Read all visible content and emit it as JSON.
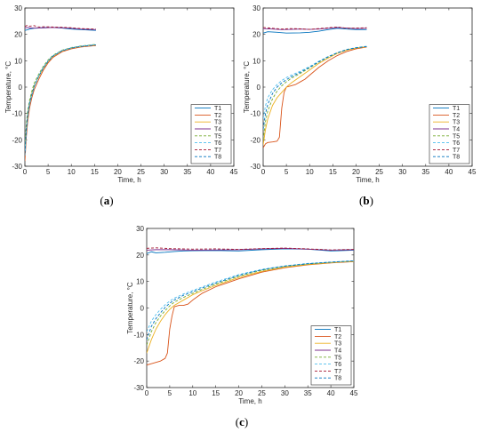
{
  "colors": {
    "T1": "#0072BD",
    "T2": "#D95319",
    "T3": "#EDB120",
    "T4": "#7E2F8E",
    "T5": "#77AC30",
    "T6": "#4DBEEE",
    "T7": "#A2142F",
    "T8": "#0072BD"
  },
  "chart_data": [
    {
      "id": "a",
      "type": "line",
      "caption": {
        "open": "(",
        "letter": "a",
        "close": ")"
      },
      "xlabel": "Time, h",
      "ylabel": "Temperature, °C",
      "xlim": [
        0,
        45
      ],
      "ylim": [
        -30,
        30
      ],
      "xticks": [
        0,
        5,
        10,
        15,
        20,
        25,
        30,
        35,
        40,
        45
      ],
      "yticks": [
        -30,
        -20,
        -10,
        0,
        10,
        20,
        30
      ],
      "legend": "bottom-right",
      "series": [
        {
          "name": "T1",
          "style": "solid",
          "x": [
            0,
            0.5,
            1,
            2,
            4,
            6,
            8,
            10,
            12,
            15.3
          ],
          "y": [
            21.5,
            21.7,
            22.0,
            22.3,
            22.5,
            22.6,
            22.4,
            22.0,
            21.8,
            21.5
          ]
        },
        {
          "name": "T2",
          "style": "solid",
          "x": [
            0,
            0.3,
            0.6,
            1,
            1.5,
            2,
            3,
            4,
            5,
            6,
            8,
            10,
            12,
            15.3
          ],
          "y": [
            -28,
            -19,
            -13,
            -8,
            -4,
            -1,
            3,
            6.5,
            9.2,
            11.2,
            13.4,
            14.5,
            15.2,
            15.8
          ]
        },
        {
          "name": "T3",
          "style": "solid",
          "x": [
            0,
            0.3,
            0.6,
            1,
            1.5,
            2,
            3,
            4,
            5,
            6,
            8,
            10,
            12,
            15.3
          ],
          "y": [
            -24,
            -16,
            -10,
            -6,
            -2.5,
            0.5,
            4,
            7.2,
            9.7,
            11.6,
            13.7,
            14.8,
            15.4,
            16.0
          ]
        },
        {
          "name": "T4",
          "style": "solid",
          "x": [
            0,
            0.5,
            1,
            2,
            4,
            6,
            8,
            10,
            12,
            15.3
          ],
          "y": [
            22.5,
            22.6,
            22.5,
            22.4,
            22.5,
            22.6,
            22.5,
            22.3,
            22.0,
            21.8
          ]
        },
        {
          "name": "T5",
          "style": "dashed",
          "x": [
            0,
            0.3,
            0.6,
            1,
            1.5,
            2,
            3,
            4,
            5,
            6,
            8,
            10,
            12,
            15.3
          ],
          "y": [
            -22,
            -14,
            -9,
            -5,
            -1.5,
            1.5,
            5,
            8,
            10.3,
            12,
            14,
            15,
            15.6,
            16.2
          ]
        },
        {
          "name": "T6",
          "style": "dashed",
          "x": [
            0,
            0.3,
            0.6,
            1,
            1.5,
            2,
            3,
            4,
            5,
            6,
            8,
            10,
            12,
            15.3
          ],
          "y": [
            -26,
            -17,
            -11,
            -6.5,
            -3,
            0,
            4.5,
            7.5,
            10,
            11.8,
            13.9,
            14.9,
            15.5,
            16.1
          ]
        },
        {
          "name": "T7",
          "style": "dashed",
          "x": [
            0,
            0.5,
            1,
            2,
            3,
            4,
            6,
            8,
            10,
            12,
            15.3
          ],
          "y": [
            23.0,
            23.4,
            23.1,
            23.3,
            22.8,
            22.9,
            22.8,
            22.7,
            22.5,
            22.2,
            22.0
          ]
        },
        {
          "name": "T8",
          "style": "dashed",
          "x": [
            0,
            0.3,
            0.6,
            1,
            1.5,
            2,
            3,
            4,
            5,
            6,
            8,
            10,
            12,
            15.3
          ],
          "y": [
            -25,
            -16,
            -10.5,
            -6,
            -2.8,
            0.3,
            4.2,
            7.3,
            9.8,
            11.7,
            13.8,
            14.8,
            15.4,
            16.0
          ]
        }
      ]
    },
    {
      "id": "b",
      "type": "line",
      "caption": {
        "open": "(",
        "letter": "b",
        "close": ")"
      },
      "xlabel": "Time, h",
      "ylabel": "Temperature, °C",
      "xlim": [
        0,
        45
      ],
      "ylim": [
        -30,
        30
      ],
      "xticks": [
        0,
        5,
        10,
        15,
        20,
        25,
        30,
        35,
        40,
        45
      ],
      "yticks": [
        -30,
        -20,
        -10,
        0,
        10,
        20,
        30
      ],
      "legend": "bottom-right",
      "series": [
        {
          "name": "T1",
          "style": "solid",
          "x": [
            0,
            1,
            3,
            5,
            8,
            10,
            12,
            14,
            16,
            18,
            20,
            22.3
          ],
          "y": [
            20.5,
            21.0,
            20.8,
            20.5,
            20.6,
            20.8,
            21.2,
            21.8,
            22.3,
            22.0,
            21.8,
            21.8
          ]
        },
        {
          "name": "T2",
          "style": "solid",
          "x": [
            0,
            0.5,
            1,
            2,
            3,
            3.5,
            4,
            4.5,
            5,
            6,
            7,
            8,
            9,
            10,
            12,
            14,
            16,
            18,
            20,
            22.3
          ],
          "y": [
            -23,
            -21.5,
            -21,
            -20.8,
            -20.5,
            -19,
            -8,
            -2,
            0,
            0.5,
            1,
            2,
            3,
            4.5,
            7.5,
            10,
            12,
            13.5,
            14.5,
            15.2
          ]
        },
        {
          "name": "T3",
          "style": "solid",
          "x": [
            0,
            0.5,
            1,
            2,
            3,
            4,
            5,
            6,
            8,
            10,
            12,
            14,
            16,
            18,
            20,
            22.3
          ],
          "y": [
            -22,
            -16,
            -12,
            -7,
            -4,
            -2,
            0,
            1.5,
            4,
            6.5,
            9,
            11,
            12.8,
            14,
            14.8,
            15.3
          ]
        },
        {
          "name": "T4",
          "style": "solid",
          "x": [
            0,
            2,
            4,
            6,
            8,
            10,
            12,
            14,
            16,
            18,
            20,
            22.3
          ],
          "y": [
            22.2,
            22.0,
            21.8,
            21.9,
            22.0,
            21.9,
            22.0,
            22.3,
            22.6,
            22.4,
            22.2,
            22.3
          ]
        },
        {
          "name": "T5",
          "style": "dashed",
          "x": [
            0,
            0.5,
            1,
            2,
            3,
            4,
            5,
            6,
            8,
            10,
            12,
            14,
            16,
            18,
            20,
            22.3
          ],
          "y": [
            -20,
            -13,
            -9,
            -4.5,
            -1.5,
            0.5,
            2,
            3.3,
            5.2,
            7.3,
            9.5,
            11.4,
            13,
            14.2,
            14.9,
            15.4
          ]
        },
        {
          "name": "T6",
          "style": "dashed",
          "x": [
            0,
            0.5,
            1,
            2,
            3,
            4,
            5,
            6,
            8,
            10,
            12,
            14,
            16,
            18,
            20,
            22.3
          ],
          "y": [
            -12,
            -7,
            -4,
            -1,
            1,
            2.5,
            3.6,
            4.5,
            6,
            7.8,
            9.8,
            11.6,
            13.1,
            14.3,
            15,
            15.5
          ]
        },
        {
          "name": "T7",
          "style": "dashed",
          "x": [
            0,
            2,
            4,
            6,
            8,
            10,
            12,
            14,
            16,
            18,
            20,
            22.3
          ],
          "y": [
            22.6,
            22.3,
            22.0,
            22.2,
            22.1,
            21.9,
            22.2,
            22.5,
            22.8,
            22.3,
            22.4,
            22.5
          ]
        },
        {
          "name": "T8",
          "style": "dashed",
          "x": [
            0,
            0.5,
            1,
            2,
            3,
            4,
            5,
            6,
            8,
            10,
            12,
            14,
            16,
            18,
            20,
            22.3
          ],
          "y": [
            -16,
            -10,
            -6.5,
            -2.5,
            0,
            1.6,
            2.8,
            3.9,
            5.6,
            7.5,
            9.6,
            11.5,
            13,
            14.2,
            14.9,
            15.4
          ]
        }
      ]
    },
    {
      "id": "c",
      "type": "line",
      "caption": {
        "open": "(",
        "letter": "c",
        "close": ")"
      },
      "xlabel": "Time, h",
      "ylabel": "Temperature, °C",
      "xlim": [
        0,
        45
      ],
      "ylim": [
        -30,
        30
      ],
      "xticks": [
        0,
        5,
        10,
        15,
        20,
        25,
        30,
        35,
        40,
        45
      ],
      "yticks": [
        -30,
        -20,
        -10,
        0,
        10,
        20,
        30
      ],
      "legend": "bottom-right",
      "series": [
        {
          "name": "T1",
          "style": "solid",
          "x": [
            0,
            1,
            2,
            4,
            6,
            8,
            10,
            15,
            20,
            25,
            30,
            35,
            40,
            45
          ],
          "y": [
            20.5,
            21.2,
            20.8,
            21.0,
            21.3,
            21.5,
            21.6,
            21.7,
            21.5,
            22.0,
            22.3,
            22.2,
            21.5,
            21.8
          ]
        },
        {
          "name": "T2",
          "style": "solid",
          "x": [
            0,
            1,
            2,
            3,
            4,
            4.5,
            5,
            5.5,
            6,
            7,
            8,
            9,
            10,
            12,
            15,
            20,
            25,
            30,
            35,
            40,
            45
          ],
          "y": [
            -21.5,
            -21,
            -20.5,
            -20,
            -19,
            -17,
            -8,
            -3,
            0.5,
            1,
            1,
            1.5,
            3,
            5.5,
            8,
            11,
            13.5,
            15.2,
            16.3,
            17.0,
            17.5
          ]
        },
        {
          "name": "T3",
          "style": "solid",
          "x": [
            0,
            1,
            2,
            3,
            4,
            5,
            6,
            8,
            10,
            12,
            15,
            20,
            25,
            30,
            35,
            40,
            45
          ],
          "y": [
            -17,
            -12,
            -8,
            -5,
            -2.5,
            -0.5,
            1,
            3,
            5,
            6.5,
            8.5,
            11.5,
            13.8,
            15.4,
            16.4,
            17.1,
            17.6
          ]
        },
        {
          "name": "T4",
          "style": "solid",
          "x": [
            0,
            2,
            5,
            10,
            15,
            20,
            25,
            30,
            35,
            40,
            45
          ],
          "y": [
            21.8,
            22.0,
            22.0,
            21.8,
            21.9,
            22.0,
            22.3,
            22.5,
            22.2,
            21.8,
            22.0
          ]
        },
        {
          "name": "T5",
          "style": "dashed",
          "x": [
            0,
            1,
            2,
            3,
            4,
            5,
            6,
            8,
            10,
            12,
            15,
            20,
            25,
            30,
            35,
            40,
            45
          ],
          "y": [
            -14,
            -9,
            -5.5,
            -3,
            -1,
            0.8,
            2.2,
            4,
            5.5,
            7,
            9,
            12,
            14.2,
            15.7,
            16.6,
            17.2,
            17.7
          ]
        },
        {
          "name": "T6",
          "style": "dashed",
          "x": [
            0,
            1,
            2,
            3,
            4,
            5,
            6,
            8,
            10,
            12,
            15,
            20,
            25,
            30,
            35,
            40,
            45
          ],
          "y": [
            -9,
            -5,
            -2.5,
            -0.5,
            1.2,
            2.6,
            3.7,
            5.3,
            6.6,
            7.9,
            9.8,
            12.6,
            14.6,
            15.9,
            16.8,
            17.3,
            17.8
          ]
        },
        {
          "name": "T7",
          "style": "dashed",
          "x": [
            0,
            2,
            5,
            10,
            15,
            20,
            25,
            30,
            35,
            40,
            45
          ],
          "y": [
            22.5,
            22.7,
            22.4,
            22.2,
            22.3,
            22.1,
            22.4,
            22.6,
            22.3,
            21.9,
            22.1
          ]
        },
        {
          "name": "T8",
          "style": "dashed",
          "x": [
            0,
            1,
            2,
            3,
            4,
            5,
            6,
            8,
            10,
            12,
            15,
            20,
            25,
            30,
            35,
            40,
            45
          ],
          "y": [
            -12,
            -7,
            -4,
            -1.8,
            0.2,
            1.8,
            3,
            4.8,
            6.1,
            7.5,
            9.4,
            12.3,
            14.4,
            15.8,
            16.7,
            17.3,
            17.8
          ]
        }
      ]
    }
  ]
}
